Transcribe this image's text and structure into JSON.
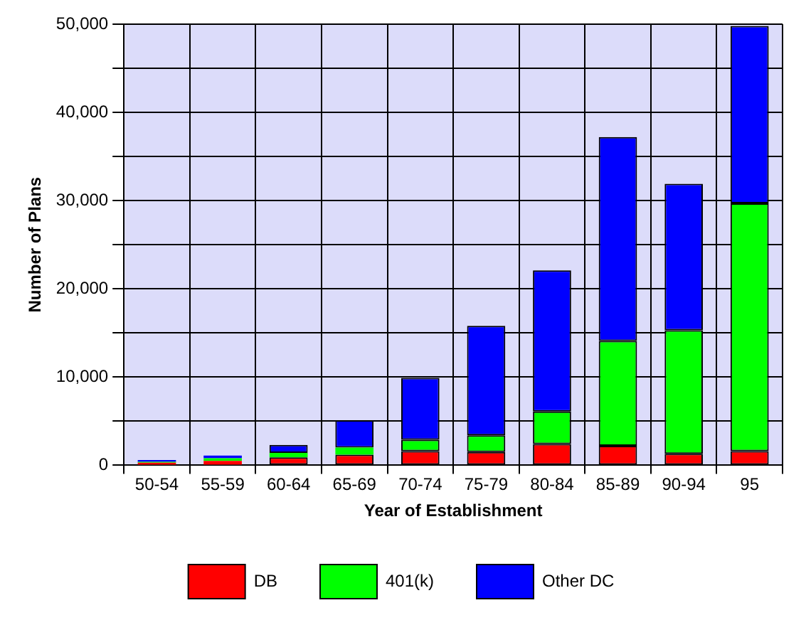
{
  "chart_data": {
    "type": "bar",
    "stacked": true,
    "xlabel": "Year of Establishment",
    "ylabel": "Number of Plans",
    "categories": [
      "50-54",
      "55-59",
      "60-64",
      "65-69",
      "70-74",
      "75-79",
      "80-84",
      "85-89",
      "90-94",
      "95"
    ],
    "series": [
      {
        "name": "DB",
        "color": "#ff0000",
        "values": [
          300,
          500,
          900,
          1200,
          1600,
          1500,
          2400,
          2200,
          1300,
          1600
        ]
      },
      {
        "name": "401(k)",
        "color": "#00ff00",
        "values": [
          100,
          300,
          500,
          800,
          1300,
          1900,
          3700,
          11900,
          14000,
          28100
        ]
      },
      {
        "name": "Other DC",
        "color": "#0000ff",
        "values": [
          200,
          300,
          900,
          3100,
          7000,
          12400,
          16000,
          23100,
          16600,
          20100
        ]
      }
    ],
    "ylim": [
      0,
      50000
    ],
    "yticks": [
      0,
      {
        "value": 5000,
        "label": null
      },
      {
        "value": 10000,
        "label": "10,000"
      },
      {
        "value": 15000,
        "label": null
      },
      {
        "value": 20000,
        "label": "20,000"
      },
      {
        "value": 25000,
        "label": null
      },
      {
        "value": 30000,
        "label": "30,000"
      },
      {
        "value": 35000,
        "label": null
      },
      {
        "value": 40000,
        "label": "40,000"
      },
      {
        "value": 45000,
        "label": null
      },
      {
        "value": 50000,
        "label": "50,000"
      }
    ],
    "grid": true,
    "legend": "bottom"
  }
}
